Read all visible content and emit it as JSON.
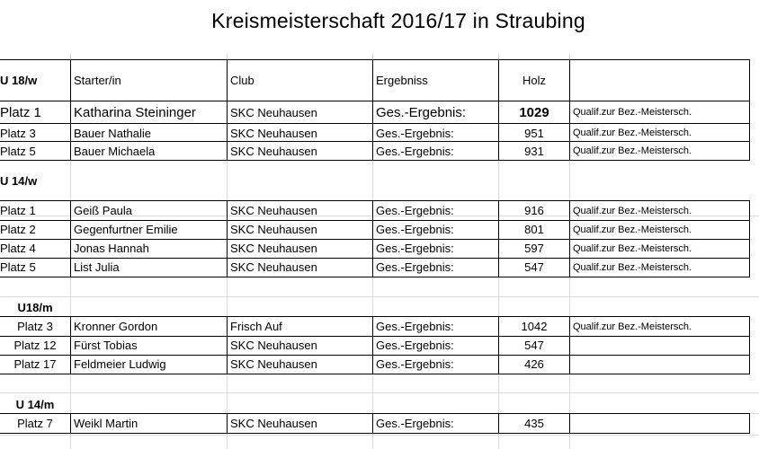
{
  "title": "Kreismeisterschaft 2016/17 in Straubing",
  "header": {
    "col0": "U 18/w",
    "col1": "Starter/in",
    "col2": "Club",
    "col3": "Ergebniss",
    "col4": "Holz",
    "col5": ""
  },
  "u18w": [
    {
      "platz": "Platz  1",
      "name": "Katharina Steininger",
      "club": "SKC Neuhausen",
      "ergebnis": "Ges.-Ergebnis:",
      "holz": "1029",
      "note": "Qualif.zur Bez.-Meistersch."
    },
    {
      "platz": "Platz  3",
      "name": "Bauer Nathalie",
      "club": "SKC Neuhausen",
      "ergebnis": "Ges.-Ergebnis:",
      "holz": "951",
      "note": "Qualif.zur Bez.-Meistersch."
    },
    {
      "platz": "Platz 5",
      "name": "Bauer Michaela",
      "club": "SKC Neuhausen",
      "ergebnis": "Ges.-Ergebnis:",
      "holz": "931",
      "note": "Qualif.zur Bez.-Meistersch."
    }
  ],
  "u14w_label": "U 14/w",
  "u14w": [
    {
      "platz": "Platz 1",
      "name": "Geiß Paula",
      "club": "SKC Neuhausen",
      "ergebnis": "Ges.-Ergebnis:",
      "holz": "916",
      "note": "Qualif.zur Bez.-Meistersch."
    },
    {
      "platz": "Platz 2",
      "name": "Gegenfurtner Emilie",
      "club": "SKC Neuhausen",
      "ergebnis": "Ges.-Ergebnis:",
      "holz": "801",
      "note": "Qualif.zur Bez.-Meistersch."
    },
    {
      "platz": "Platz 4",
      "name": "Jonas Hannah",
      "club": "SKC Neuhausen",
      "ergebnis": "Ges.-Ergebnis:",
      "holz": "597",
      "note": "Qualif.zur Bez.-Meistersch."
    },
    {
      "platz": "Platz 5",
      "name": "List Julia",
      "club": "SKC Neuhausen",
      "ergebnis": "Ges.-Ergebnis:",
      "holz": "547",
      "note": "Qualif.zur Bez.-Meistersch."
    }
  ],
  "u18m_label": "U18/m",
  "u18m": [
    {
      "platz": "Platz 3",
      "name": "Kronner Gordon",
      "club": "Frisch Auf",
      "ergebnis": "Ges.-Ergebnis:",
      "holz": "1042",
      "note": "Qualif.zur Bez.-Meistersch."
    },
    {
      "platz": "Platz 12",
      "name": "Fürst Tobias",
      "club": "SKC Neuhausen",
      "ergebnis": "Ges.-Ergebnis:",
      "holz": "547",
      "note": ""
    },
    {
      "platz": "Platz 17",
      "name": "Feldmeier Ludwig",
      "club": "SKC Neuhausen",
      "ergebnis": "Ges.-Ergebnis:",
      "holz": "426",
      "note": ""
    }
  ],
  "u14m_label": "U 14/m",
  "u14m": [
    {
      "platz": "Platz 7",
      "name": "Weikl Martin",
      "club": "SKC Neuhausen",
      "ergebnis": "Ges.-Ergebnis:",
      "holz": "435",
      "note": ""
    }
  ]
}
